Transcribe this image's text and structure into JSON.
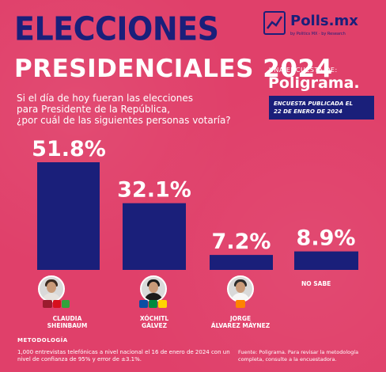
{
  "header": {
    "title_line1": "ELECCIONES",
    "title_line2": "PRESIDENCIALES 2024",
    "question_line1": "Si el día de hoy fueran las elecciones",
    "question_line2": "para Presidente de la República,",
    "question_line3": "¿por cuál de las siguientes personas votaría?"
  },
  "brand": {
    "logo_name": "Polls.mx",
    "logo_sub": "by Politics MX · by Research",
    "encuesta_label": "UNA ENCUESTA DE:",
    "pollster": "Poligrama.",
    "published_line1": "ENCUESTA PUBLICADA EL",
    "published_line2": "22 DE ENERO DE 2024"
  },
  "colors": {
    "background": "#e0406a",
    "bar": "#1a1f7a",
    "text_light": "#ffffff"
  },
  "chart_data": {
    "type": "bar",
    "categories": [
      "CLAUDIA SHEINBAUM",
      "XÓCHITL GÁLVEZ",
      "JORGE ÁLVAREZ MÁYNEZ",
      "NO SABE"
    ],
    "values": [
      51.8,
      32.1,
      7.2,
      8.9
    ],
    "value_labels": [
      "51.8%",
      "32.1%",
      "7.2%",
      "8.9%"
    ],
    "ylim": [
      0,
      55
    ],
    "grid": false,
    "legend": "none"
  },
  "candidates": [
    {
      "line1": "CLAUDIA",
      "line2": "SHEINBAUM",
      "avatar": "candidate-photo",
      "parties": [
        "morena",
        "PT",
        "PVEM"
      ]
    },
    {
      "line1": "XÓCHITL",
      "line2": "GÁLVEZ",
      "avatar": "candidate-photo",
      "parties": [
        "PAN",
        "PRI",
        "PRD"
      ]
    },
    {
      "line1": "JORGE",
      "line2": "ÁLVAREZ MÁYNEZ",
      "avatar": "candidate-photo",
      "parties": [
        "MC"
      ]
    },
    {
      "line1": "NO SABE",
      "line2": ""
    }
  ],
  "footer": {
    "metodo_title": "METODOLOGÍA",
    "metodo_text": "1,000 entrevistas telefónicas a nivel nacional el 16 de enero de 2024 con un nivel de confianza de 95% y error de ±3.1%.",
    "fuente": "Fuente: Poligrama. Para revisar la metodología completa, consulte a la encuestadora."
  }
}
